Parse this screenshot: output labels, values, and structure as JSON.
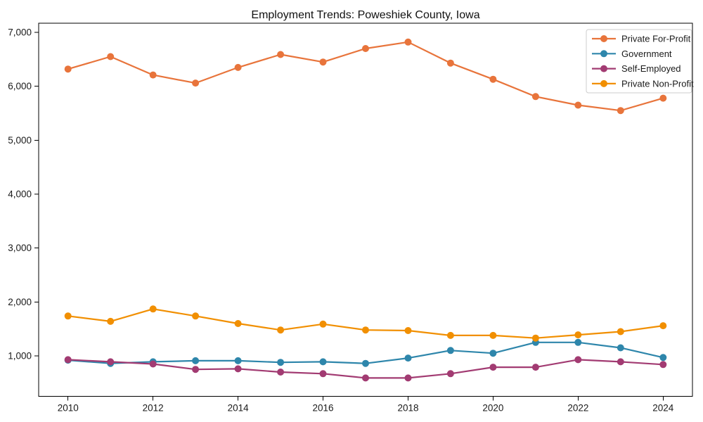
{
  "chart_data": {
    "type": "line",
    "title": "Employment Trends: Poweshiek County, Iowa",
    "xlabel": "",
    "ylabel": "",
    "grid": false,
    "legend_position": "upper right",
    "marker": "circle",
    "x": [
      2010,
      2011,
      2012,
      2013,
      2014,
      2015,
      2016,
      2017,
      2018,
      2019,
      2020,
      2021,
      2022,
      2023,
      2024
    ],
    "series": [
      {
        "name": "Private For-Profit",
        "color": "#E8743B",
        "values": [
          6320,
          6550,
          6210,
          6060,
          6350,
          6590,
          6450,
          6700,
          6820,
          6430,
          6130,
          5810,
          5650,
          5550,
          5780
        ]
      },
      {
        "name": "Government",
        "color": "#2E86AB",
        "values": [
          920,
          860,
          890,
          910,
          910,
          880,
          890,
          860,
          960,
          1100,
          1050,
          1250,
          1250,
          1150,
          970
        ]
      },
      {
        "name": "Self-Employed",
        "color": "#A23B72",
        "values": [
          930,
          890,
          850,
          750,
          760,
          700,
          670,
          590,
          590,
          670,
          790,
          790,
          930,
          890,
          840
        ]
      },
      {
        "name": "Private Non-Profit",
        "color": "#F18F01",
        "values": [
          1740,
          1640,
          1870,
          1740,
          1600,
          1480,
          1590,
          1480,
          1470,
          1380,
          1380,
          1330,
          1390,
          1450,
          1560
        ]
      }
    ],
    "xlim": [
      2009.31,
      2024.69
    ],
    "ylim": [
      250,
      7170
    ],
    "x_tick_values": [
      2010,
      2012,
      2014,
      2016,
      2018,
      2020,
      2022,
      2024
    ],
    "x_tick_labels": [
      "2010",
      "2012",
      "2014",
      "2016",
      "2018",
      "2020",
      "2022",
      "2024"
    ],
    "y_tick_values": [
      1000,
      2000,
      3000,
      4000,
      5000,
      6000,
      7000
    ],
    "y_tick_labels": [
      "1,000",
      "2,000",
      "3,000",
      "4,000",
      "5,000",
      "6,000",
      "7,000"
    ],
    "axis_color": "#000000",
    "tick_label_color": "#1a1a1a",
    "legend_border_color": "#cccccc"
  }
}
